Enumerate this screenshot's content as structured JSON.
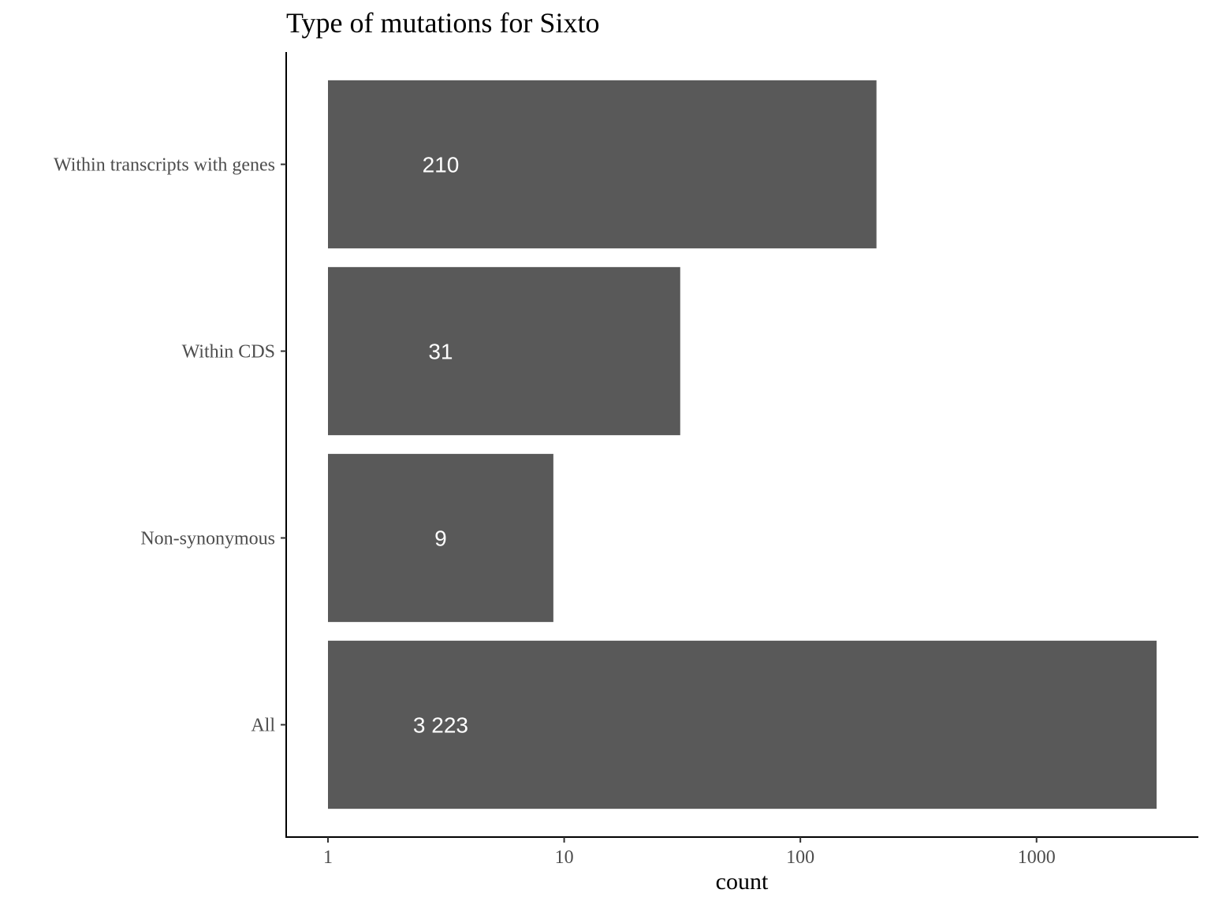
{
  "chart_data": {
    "type": "bar",
    "orientation": "horizontal",
    "title": "Type of mutations for Sixto",
    "xlabel": "count",
    "ylabel": "",
    "x_scale": "log10",
    "xlim": [
      1,
      3223
    ],
    "x_ticks": [
      1,
      10,
      100,
      1000
    ],
    "x_tick_labels": [
      "1",
      "10",
      "100",
      "1000"
    ],
    "categories": [
      "Within transcripts with genes",
      "Within CDS",
      "Non-synonymous",
      "All"
    ],
    "values": [
      210,
      31,
      9,
      3223
    ],
    "value_labels": [
      "210",
      "31",
      "9",
      "3 223"
    ],
    "bar_color": "#595959",
    "label_color": "#ffffff",
    "grid": false,
    "legend": "none"
  }
}
